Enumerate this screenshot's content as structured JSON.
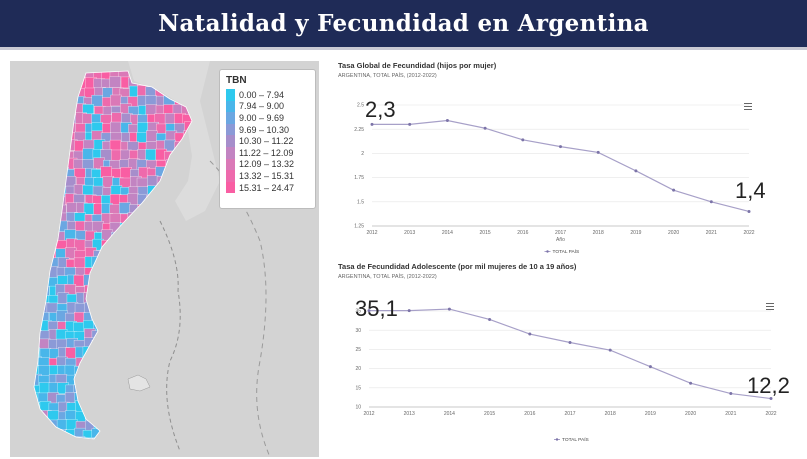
{
  "header": {
    "title": "Natalidad y Fecundidad en Argentina"
  },
  "map": {
    "legend_title": "TBN",
    "legend": [
      {
        "range": "0.00 – 7.94",
        "color": "#2ec9ee"
      },
      {
        "range": "7.94 – 9.00",
        "color": "#49b6ea"
      },
      {
        "range": "9.00 – 9.69",
        "color": "#6ba7e2"
      },
      {
        "range": "9.69 – 10.30",
        "color": "#8b9ad7"
      },
      {
        "range": "10.30 – 11.22",
        "color": "#a68ecb"
      },
      {
        "range": "11.22 – 12.09",
        "color": "#c284c2"
      },
      {
        "range": "12.09 – 13.32",
        "color": "#da79b7"
      },
      {
        "range": "13.32 – 15.31",
        "color": "#ee6aac"
      },
      {
        "range": "15.31 – 24.47",
        "color": "#f95ea3"
      }
    ]
  },
  "chart_data": [
    {
      "type": "line",
      "title": "Tasa Global de Fecundidad (hijos por mujer)",
      "subtitle": "ARGENTINA, TOTAL PAÍS, (2012-2022)",
      "xlabel": "Año",
      "ylabel": "",
      "x": [
        2012,
        2013,
        2014,
        2015,
        2016,
        2017,
        2018,
        2019,
        2020,
        2021,
        2022
      ],
      "yticks": [
        "1.25",
        "1.5",
        "1.75",
        "2",
        "2.25",
        "2.5"
      ],
      "ylim": [
        1.25,
        2.5
      ],
      "series": [
        {
          "name": "TOTAL PAÍS",
          "values": [
            2.3,
            2.3,
            2.34,
            2.26,
            2.14,
            2.07,
            2.01,
            1.82,
            1.62,
            1.5,
            1.4
          ]
        }
      ],
      "annotations": [
        "2,3",
        "1,4"
      ],
      "grid": true,
      "legend_position": "bottom"
    },
    {
      "type": "line",
      "title": "Tasa de Fecundidad Adolescente (por mil mujeres de 10 a 19 años)",
      "subtitle": "ARGENTINA, TOTAL PAÍS, (2012-2022)",
      "xlabel": "",
      "ylabel": "",
      "x": [
        2012,
        2013,
        2014,
        2015,
        2016,
        2017,
        2018,
        2019,
        2020,
        2021,
        2022
      ],
      "yticks": [
        "10",
        "15",
        "20",
        "25",
        "30",
        "35"
      ],
      "ylim": [
        10,
        35
      ],
      "series": [
        {
          "name": "TOTAL PAÍS",
          "values": [
            35.1,
            35.1,
            35.5,
            32.8,
            29.0,
            26.8,
            24.8,
            20.5,
            16.2,
            13.5,
            12.2
          ]
        }
      ],
      "annotations": [
        "35,1",
        "12,2"
      ],
      "grid": true,
      "legend_position": "bottom"
    }
  ]
}
